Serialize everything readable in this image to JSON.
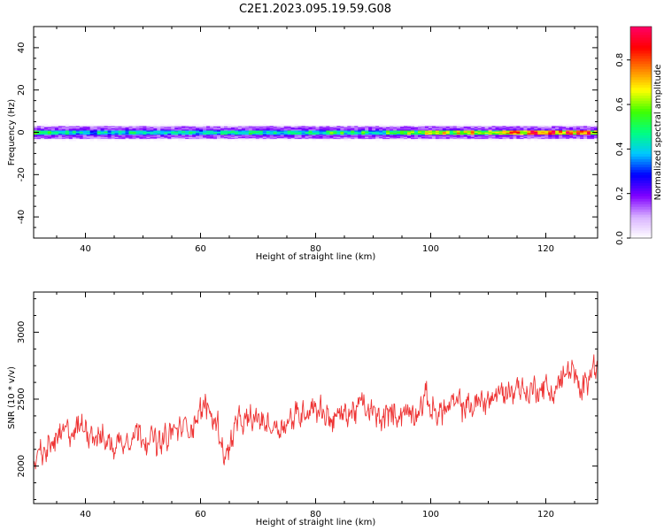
{
  "title": "C2E1.2023.095.19.59.G08",
  "chart_data": [
    {
      "type": "heatmap",
      "xlabel": "Height of straight line (km)",
      "ylabel": "Frequency (Hz)",
      "xlim": [
        31,
        129
      ],
      "ylim": [
        -50,
        50
      ],
      "xticks": [
        40,
        60,
        80,
        100,
        120
      ],
      "yticks": [
        -40,
        -20,
        0,
        20,
        40
      ],
      "band_center_hz": 0,
      "band_halfwidth_hz": 3.5,
      "amplitude_profile": {
        "x": [
          31,
          40,
          50,
          60,
          70,
          80,
          90,
          100,
          110,
          115,
          120,
          129
        ],
        "peak": [
          0.55,
          0.42,
          0.42,
          0.45,
          0.45,
          0.5,
          0.5,
          0.6,
          0.7,
          0.85,
          0.85,
          0.85
        ]
      },
      "colorbar": {
        "label": "Normalized spectral amplitude",
        "range": [
          0,
          0.95
        ],
        "ticks": [
          0.0,
          0.2,
          0.4,
          0.6,
          0.8
        ],
        "colormap": [
          "#ffffff",
          "#d9b3ff",
          "#8000ff",
          "#0000ff",
          "#00c8ff",
          "#00ff80",
          "#40ff00",
          "#ffff00",
          "#ff8000",
          "#ff0000",
          "#ff0066"
        ]
      }
    },
    {
      "type": "line",
      "xlabel": "Height of straight line (km)",
      "ylabel": "SNR (10 * v/v)",
      "xlim": [
        31,
        129
      ],
      "ylim": [
        1720,
        3300
      ],
      "xticks": [
        40,
        60,
        80,
        100,
        120
      ],
      "yticks": [
        2000,
        2500,
        3000
      ],
      "color": "#ee3333",
      "trend": {
        "x": [
          31,
          33,
          35,
          37,
          40,
          43,
          45,
          48,
          50,
          53,
          55,
          58,
          61,
          63,
          64.5,
          66,
          70,
          73,
          76,
          79,
          80,
          83,
          86,
          88,
          91,
          94,
          97,
          99,
          101,
          104,
          107,
          110,
          113,
          115,
          117,
          119,
          121,
          123,
          124.5,
          126,
          128,
          129
        ],
        "y": [
          2050,
          2100,
          2200,
          2250,
          2300,
          2200,
          2150,
          2250,
          2250,
          2150,
          2250,
          2300,
          2450,
          2300,
          2050,
          2300,
          2350,
          2300,
          2350,
          2450,
          2450,
          2350,
          2400,
          2450,
          2350,
          2400,
          2400,
          2500,
          2400,
          2450,
          2450,
          2500,
          2550,
          2600,
          2550,
          2600,
          2550,
          2650,
          2750,
          2500,
          2800,
          2700
        ]
      },
      "noise_amplitude": 130
    }
  ]
}
